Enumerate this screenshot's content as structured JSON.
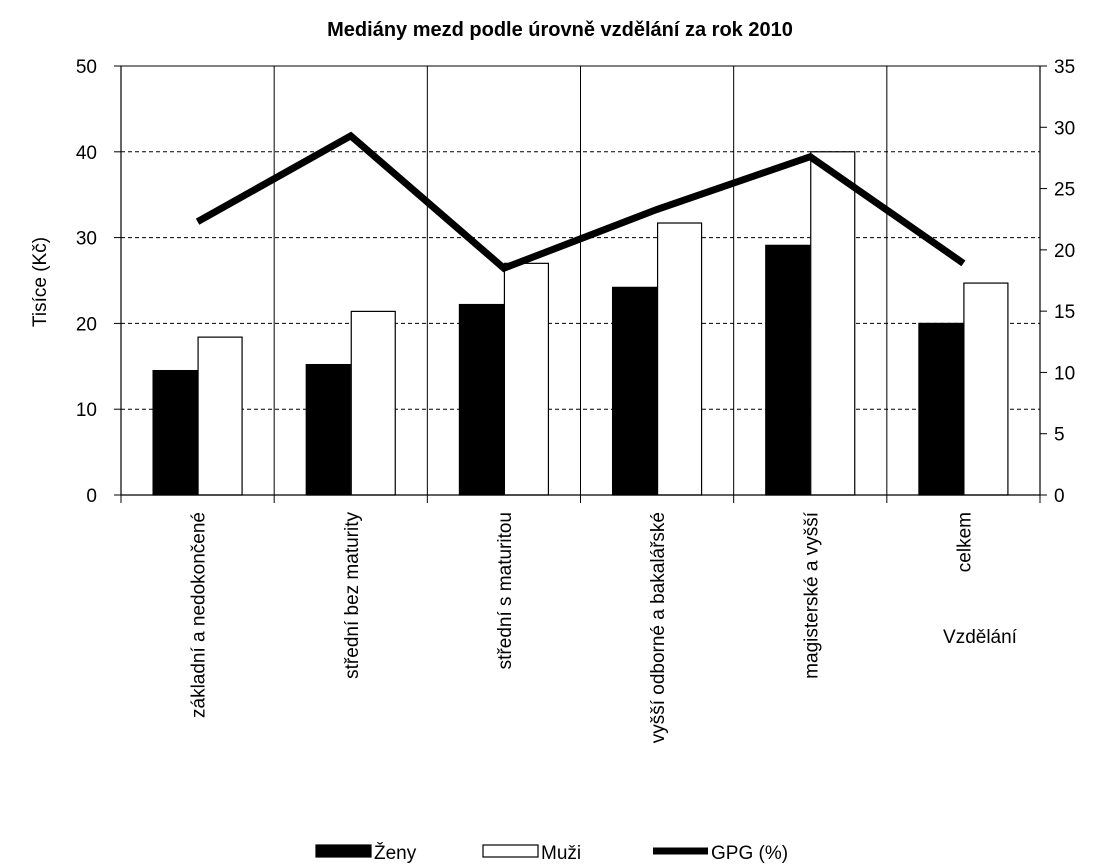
{
  "chart_data": {
    "type": "bar",
    "title": "Mediány mezd podle úrovně vzdělání za rok 2010",
    "xlabel": "Vzdělání",
    "ylabel": "Tisíce (Kč)",
    "ylim": [
      0,
      50
    ],
    "y2lim": [
      0,
      35
    ],
    "yticks": [
      "0",
      "10",
      "20",
      "30",
      "40",
      "50"
    ],
    "y2ticks": [
      "0",
      "5",
      "10",
      "15",
      "20",
      "25",
      "30",
      "35"
    ],
    "grid": "horizontal dashed",
    "legend": "bottom",
    "categories": [
      "základní a nedokončené",
      "střední bez maturity",
      "střední s maturitou",
      "vyšší odborné a bakalářské",
      "magisterské a vyšší",
      "celkem"
    ],
    "series": [
      {
        "name": "Ženy",
        "type": "bar",
        "axis": "left",
        "color": "#000000",
        "values": [
          14.5,
          15.2,
          22.2,
          24.2,
          29.1,
          20.0
        ]
      },
      {
        "name": "Muži",
        "type": "bar",
        "axis": "left",
        "color": "#ffffff",
        "values": [
          18.4,
          21.4,
          27.0,
          31.7,
          40.0,
          24.7
        ]
      },
      {
        "name": "GPG (%)",
        "type": "line",
        "axis": "right",
        "color": "#000000",
        "values": [
          22.3,
          29.3,
          18.5,
          23.3,
          27.6,
          18.9
        ]
      }
    ]
  }
}
